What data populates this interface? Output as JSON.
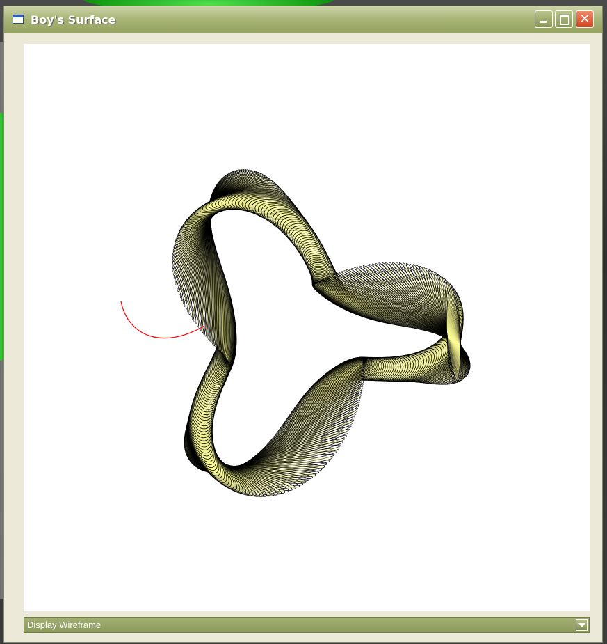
{
  "window": {
    "title": "Boy's Surface"
  },
  "controls": {
    "display_mode": {
      "selected": "Display Wireframe"
    }
  },
  "colors": {
    "title_bar": "#9aa766",
    "surface_fill": "#ffff99",
    "wire": "#000000",
    "seam": "#ff0000"
  },
  "icons": [
    "window-icon",
    "minimize-icon",
    "maximize-icon",
    "close-icon",
    "chevron-down-icon"
  ]
}
